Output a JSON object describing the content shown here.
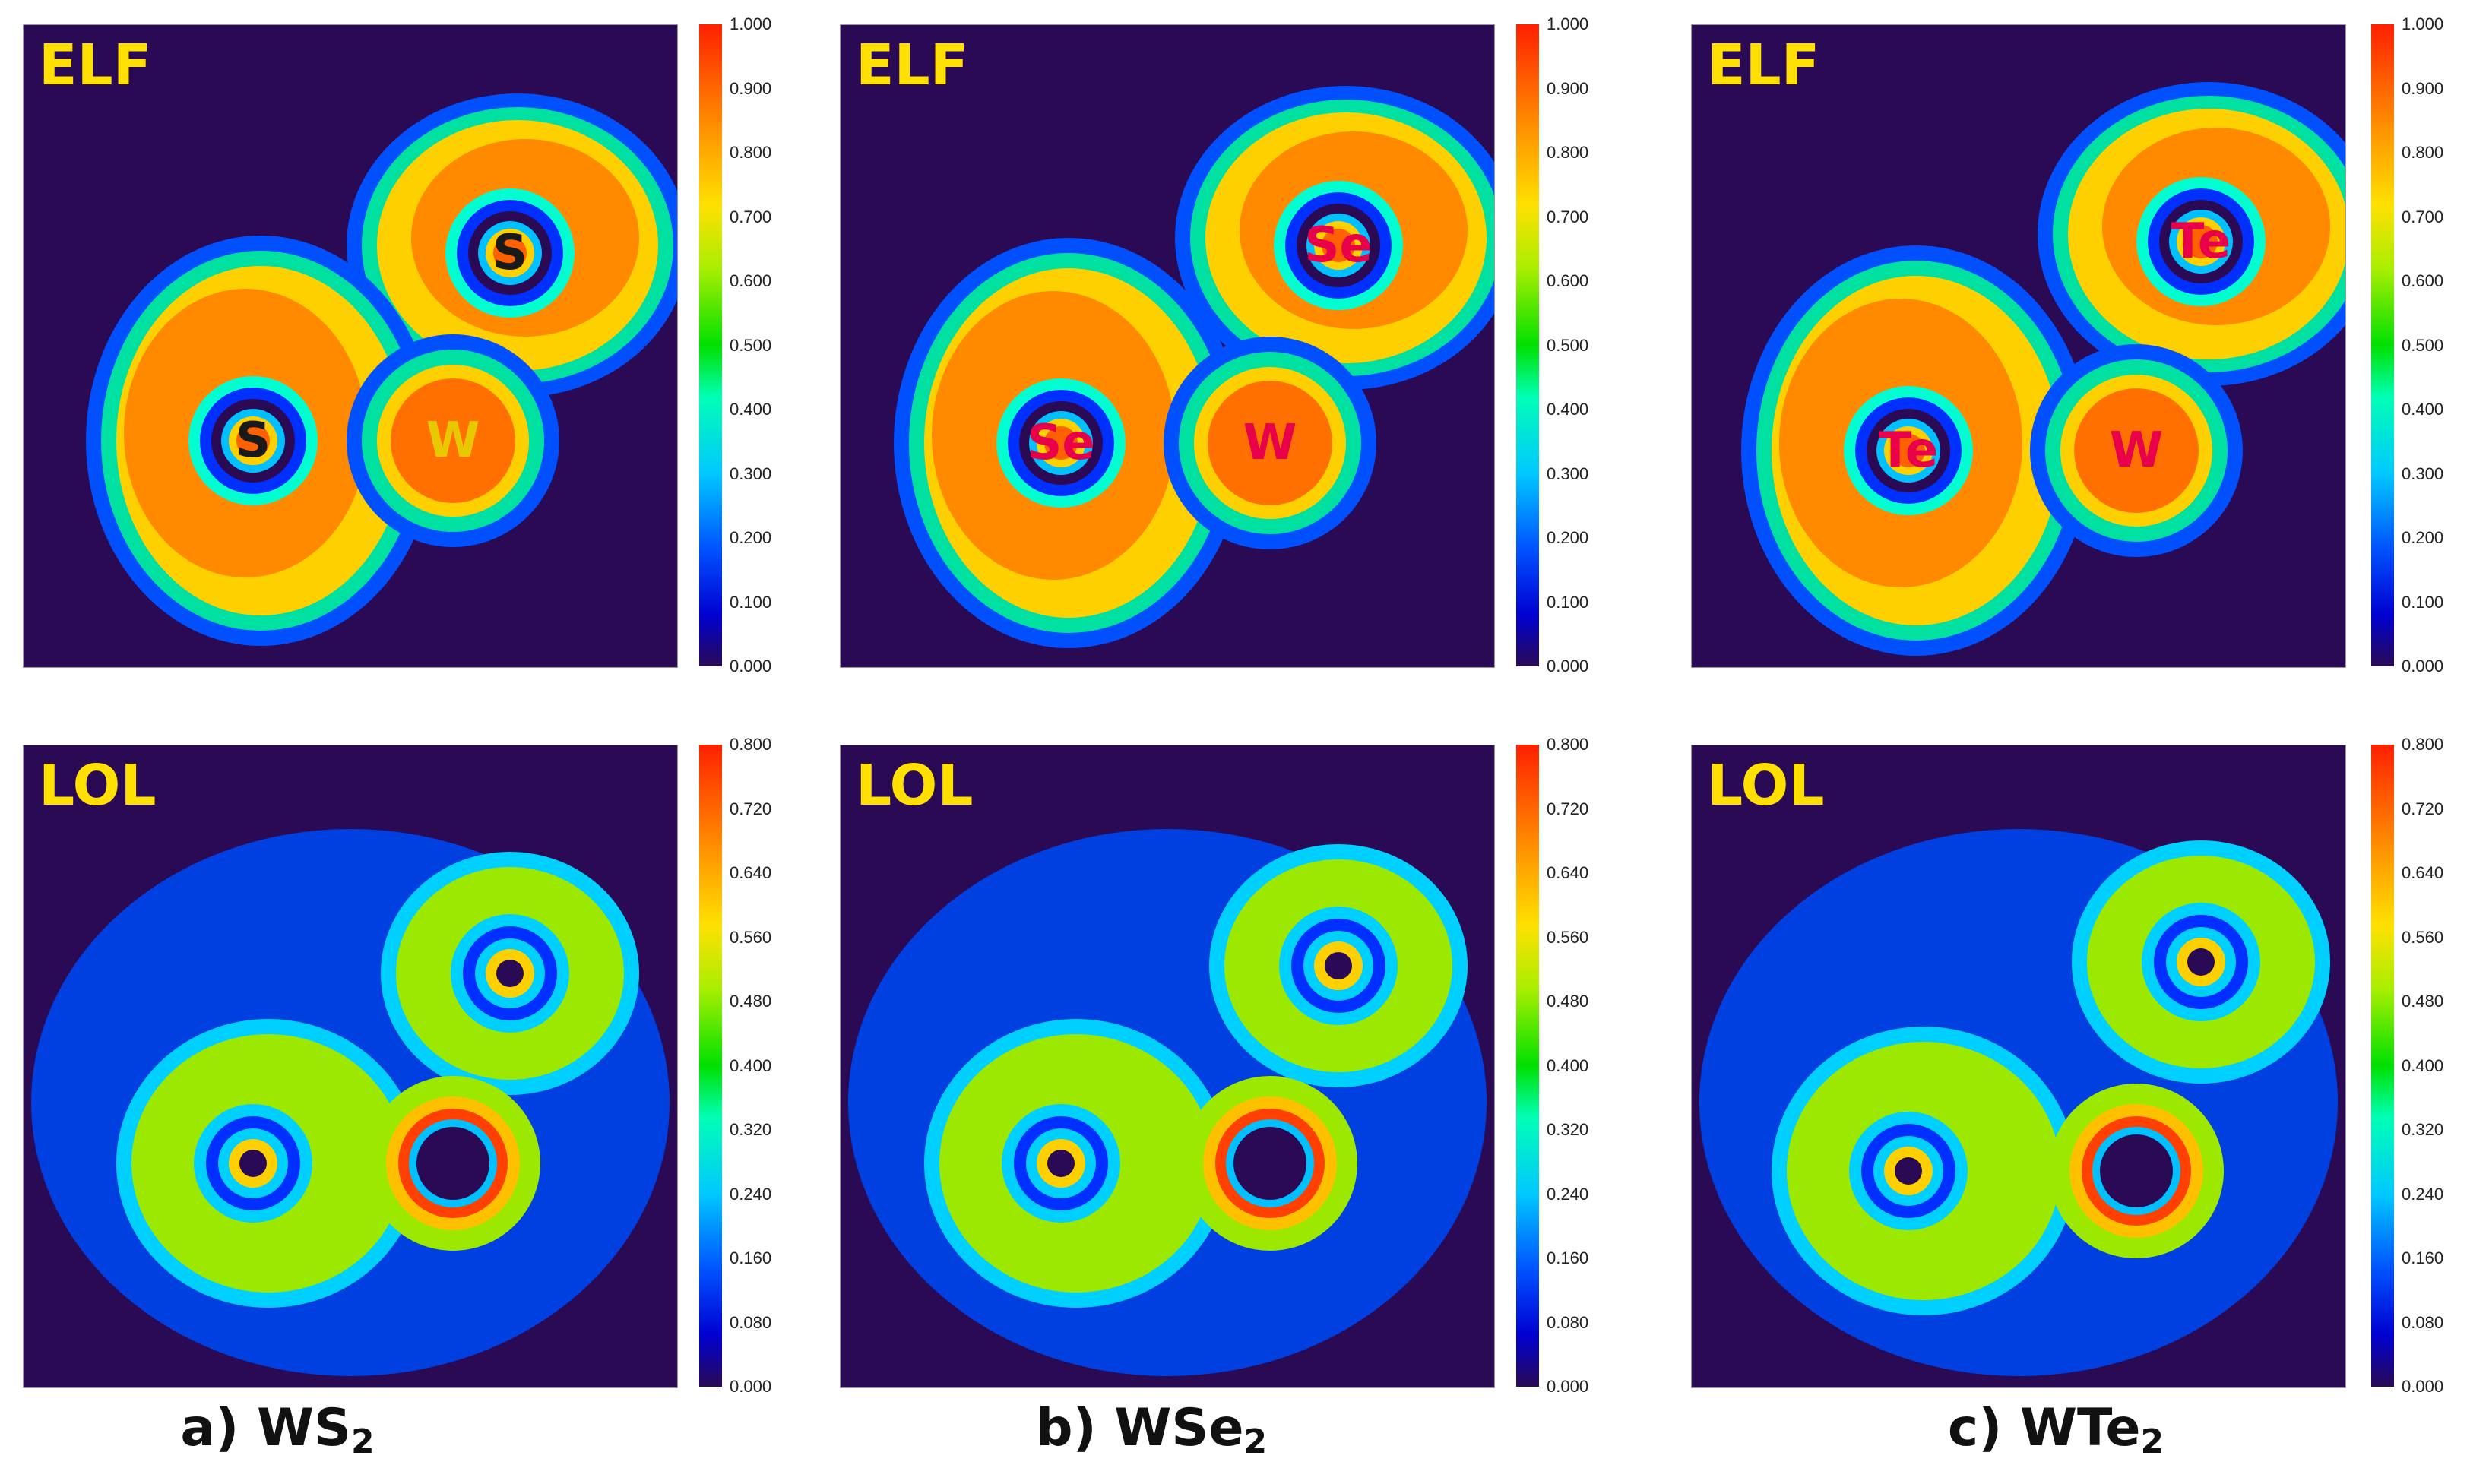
{
  "chart_data": [
    {
      "type": "heatmap",
      "panel_label": "ELF",
      "material": "WS2",
      "atoms": [
        "S",
        "S",
        "W"
      ],
      "colorbar": {
        "min": 0.0,
        "max": 1.0,
        "ticks": [
          "1.000",
          "0.900",
          "0.800",
          "0.700",
          "0.600",
          "0.500",
          "0.400",
          "0.300",
          "0.200",
          "0.100",
          "0.000"
        ]
      }
    },
    {
      "type": "heatmap",
      "panel_label": "ELF",
      "material": "WSe2",
      "atoms": [
        "Se",
        "Se",
        "W"
      ],
      "colorbar": {
        "min": 0.0,
        "max": 1.0,
        "ticks": [
          "1.000",
          "0.900",
          "0.800",
          "0.700",
          "0.600",
          "0.500",
          "0.400",
          "0.300",
          "0.200",
          "0.100",
          "0.000"
        ]
      }
    },
    {
      "type": "heatmap",
      "panel_label": "ELF",
      "material": "WTe2",
      "atoms": [
        "Te",
        "Te",
        "W"
      ],
      "colorbar": {
        "min": 0.0,
        "max": 1.0,
        "ticks": [
          "1.000",
          "0.900",
          "0.800",
          "0.700",
          "0.600",
          "0.500",
          "0.400",
          "0.300",
          "0.200",
          "0.100",
          "0.000"
        ]
      }
    },
    {
      "type": "heatmap",
      "panel_label": "LOL",
      "material": "WS2",
      "atoms": [],
      "colorbar": {
        "min": 0.0,
        "max": 0.8,
        "ticks": [
          "0.800",
          "0.720",
          "0.640",
          "0.560",
          "0.480",
          "0.400",
          "0.320",
          "0.240",
          "0.160",
          "0.080",
          "0.000"
        ]
      }
    },
    {
      "type": "heatmap",
      "panel_label": "LOL",
      "material": "WSe2",
      "atoms": [],
      "colorbar": {
        "min": 0.0,
        "max": 0.8,
        "ticks": [
          "0.800",
          "0.720",
          "0.640",
          "0.560",
          "0.480",
          "0.400",
          "0.320",
          "0.240",
          "0.160",
          "0.080",
          "0.000"
        ]
      }
    },
    {
      "type": "heatmap",
      "panel_label": "LOL",
      "material": "WTe2",
      "atoms": [],
      "colorbar": {
        "min": 0.0,
        "max": 0.8,
        "ticks": [
          "0.800",
          "0.720",
          "0.640",
          "0.560",
          "0.480",
          "0.400",
          "0.320",
          "0.240",
          "0.160",
          "0.080",
          "0.000"
        ]
      }
    }
  ],
  "captions": [
    {
      "prefix": "a) WS",
      "sub": "2"
    },
    {
      "prefix": "b) WSe",
      "sub": "2"
    },
    {
      "prefix": "c) WTe",
      "sub": "2"
    }
  ],
  "colors": {
    "label": "#ffe000",
    "atom_light": "#1a1a1a",
    "atom_red": "#e8004a",
    "background": "#2a0a55"
  }
}
